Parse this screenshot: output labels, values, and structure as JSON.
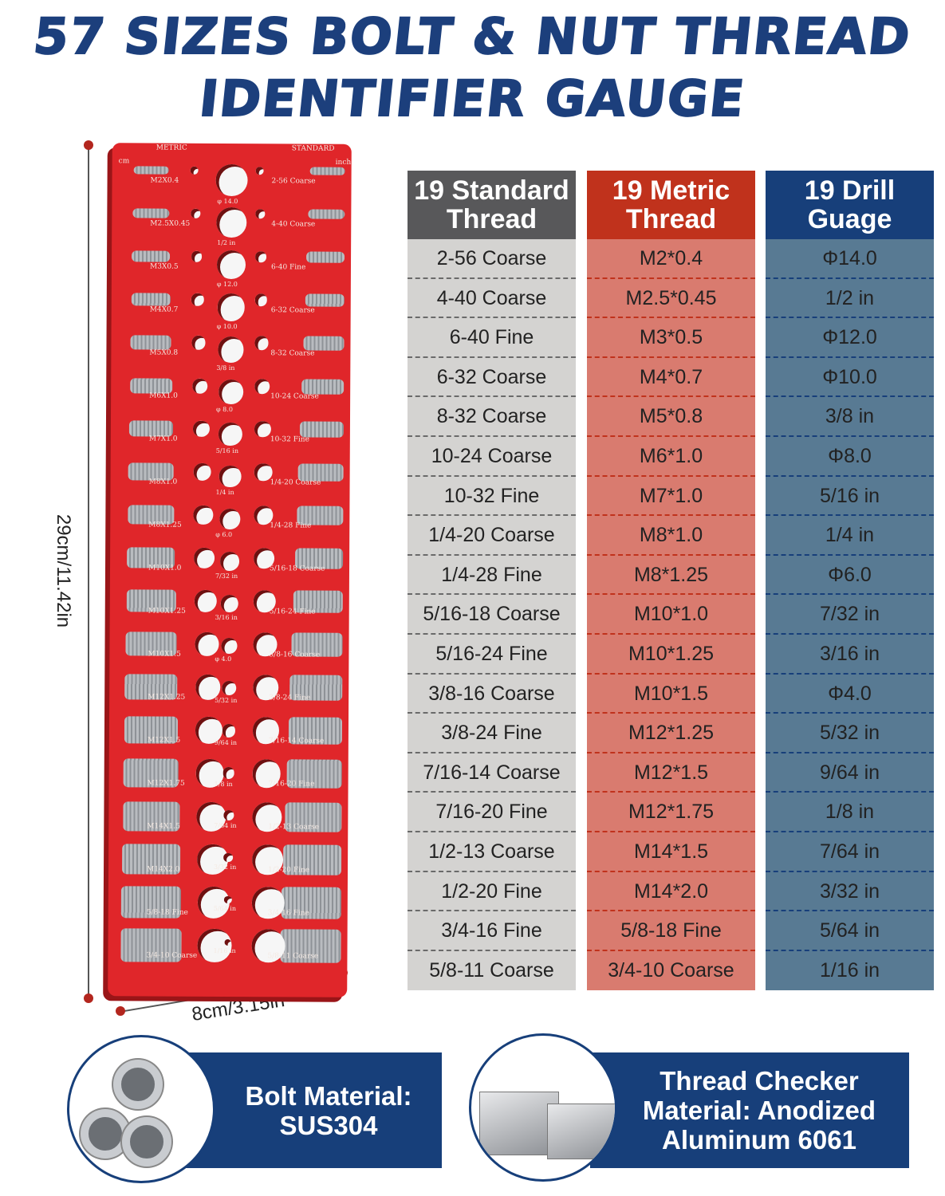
{
  "title": {
    "line1": "57 SIZES BOLT & NUT THREAD",
    "line2": "IDENTIFIER GAUGE"
  },
  "dimensions": {
    "height": "29cm/11.42in",
    "width": "8cm/3.15in"
  },
  "plate": {
    "metric_header": "METRIC",
    "standard_header": "STANDARD",
    "cm_label": "cm",
    "inch_label": "inch",
    "metric_labels": [
      "M2X0.4",
      "M2.5X0.45",
      "M3X0.5",
      "M4X0.7",
      "M5X0.8",
      "M6X1.0",
      "M7X1.0",
      "M8X1.0",
      "M8X1.25",
      "M10X1.0",
      "M10X1.25",
      "M10X1.5",
      "M12X1.25",
      "M12X1.5",
      "M12X1.75",
      "M14X1.5",
      "M14X2.0",
      "5/8-18 Fine",
      "3/4-10 Coarse"
    ],
    "standard_labels": [
      "2-56 Coarse",
      "4-40 Coarse",
      "6-40 Fine",
      "6-32 Coarse",
      "8-32 Coarse",
      "10-24 Coarse",
      "10-32 Fine",
      "1/4-20 Coarse",
      "1/4-28 Fine",
      "5/16-18 Coarse",
      "5/16-24 Fine",
      "3/8-16 Coarse",
      "3/8-24 Fine",
      "7/16-14 Coarse",
      "7/16-20 Fine",
      "1/2-13 Coarse",
      "1/2-20 Fine",
      "3/4-16 Fine",
      "5/8-11 Coarse"
    ],
    "drill_labels": [
      "φ 14.0",
      "1/2 in",
      "φ 12.0",
      "φ 10.0",
      "3/8 in",
      "φ 8.0",
      "5/16 in",
      "1/4 in",
      "φ 6.0",
      "7/32 in",
      "3/16 in",
      "φ 4.0",
      "5/32 in",
      "9/64 in",
      "1/8 in",
      "7/64 in",
      "3/32 in",
      "5/64 in",
      "1/16 in"
    ]
  },
  "table": {
    "standard": {
      "header1": "19 Standard",
      "header2": "Thread",
      "color_header": "#58585a",
      "color_body": "#d4d3d1",
      "color_dash": "#6a6a6a",
      "rows": [
        "2-56 Coarse",
        "4-40 Coarse",
        "6-40 Fine",
        "6-32 Coarse",
        "8-32 Coarse",
        "10-24 Coarse",
        "10-32 Fine",
        "1/4-20 Coarse",
        "1/4-28 Fine",
        "5/16-18 Coarse",
        "5/16-24 Fine",
        "3/8-16 Coarse",
        "3/8-24 Fine",
        "7/16-14 Coarse",
        "7/16-20 Fine",
        "1/2-13 Coarse",
        "1/2-20 Fine",
        "3/4-16 Fine",
        "5/8-11 Coarse"
      ]
    },
    "metric": {
      "header1": "19 Metric",
      "header2": "Thread",
      "color_header": "#c0321c",
      "color_body": "#d97b6f",
      "color_dash": "#c0321c",
      "rows": [
        "M2*0.4",
        "M2.5*0.45",
        "M3*0.5",
        "M4*0.7",
        "M5*0.8",
        "M6*1.0",
        "M7*1.0",
        "M8*1.0",
        "M8*1.25",
        "M10*1.0",
        "M10*1.25",
        "M10*1.5",
        "M12*1.25",
        "M12*1.5",
        "M12*1.75",
        "M14*1.5",
        "M14*2.0",
        "5/8-18 Fine",
        "3/4-10 Coarse"
      ]
    },
    "drill": {
      "header1": "19 Drill",
      "header2": "Guage",
      "color_header": "#173f7a",
      "color_body": "#587a93",
      "color_dash": "#173f7a",
      "rows": [
        "Φ14.0",
        "1/2 in",
        "Φ12.0",
        "Φ10.0",
        "3/8 in",
        "Φ8.0",
        "5/16 in",
        "1/4 in",
        "Φ6.0",
        "7/32 in",
        "3/16 in",
        "Φ4.0",
        "5/32 in",
        "9/64 in",
        "1/8 in",
        "7/64 in",
        "3/32 in",
        "5/64 in",
        "1/16 in"
      ]
    }
  },
  "materials": {
    "bolt": {
      "line1": "Bolt Material:",
      "line2": "SUS304"
    },
    "checker": {
      "line1": "Thread Checker",
      "line2": "Material: Anodized",
      "line3": "Aluminum 6061"
    }
  }
}
